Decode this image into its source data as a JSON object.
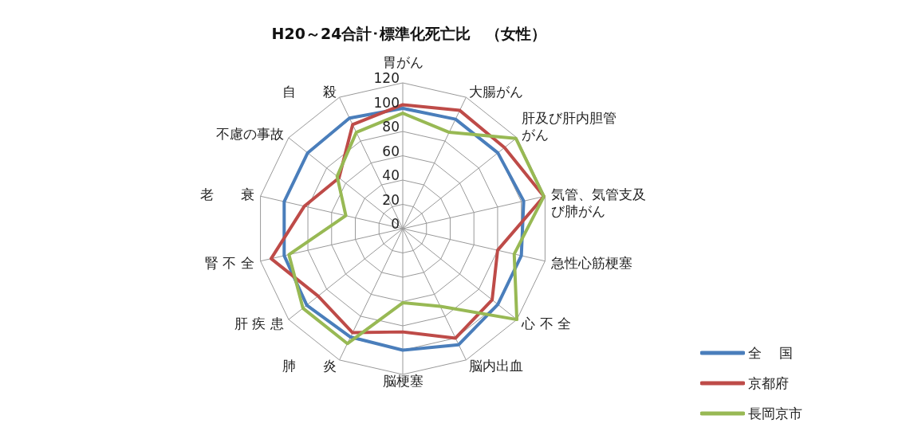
{
  "chart_data": {
    "type": "radar",
    "title": "H20～24合計･標準化死亡比　（女性）",
    "categories": [
      "胃がん",
      "大腸がん",
      "肝及び肝内胆管がん",
      "気管、気管支及び肺がん",
      "急性心筋梗塞",
      "心 不 全",
      "脳内出血",
      "脳梗塞",
      "肺　　炎",
      "肝 疾 患",
      "腎 不 全",
      "老　　衰",
      "不慮の事故",
      "自　　殺"
    ],
    "series": [
      {
        "name": "全　 国",
        "color": "#4a7ebb",
        "values": [
          99,
          100,
          100,
          102,
          100,
          100,
          106,
          100,
          99,
          101,
          100,
          100,
          100,
          101
        ]
      },
      {
        "name": "京都府",
        "color": "#be4b48",
        "values": [
          102,
          108,
          107,
          119,
          80,
          94,
          100,
          85,
          95,
          89,
          111,
          83,
          67,
          95
        ]
      },
      {
        "name": "長岡京市",
        "color": "#98b954",
        "values": [
          95,
          88,
          119,
          119,
          94,
          120,
          71,
          61,
          105,
          105,
          96,
          48,
          69,
          88
        ]
      }
    ],
    "ylim": [
      0,
      120
    ],
    "yticks": [
      0,
      20,
      40,
      60,
      80,
      100,
      120
    ],
    "grid": true,
    "legend": "bottom right",
    "marker": "none",
    "line_style": "solid"
  }
}
